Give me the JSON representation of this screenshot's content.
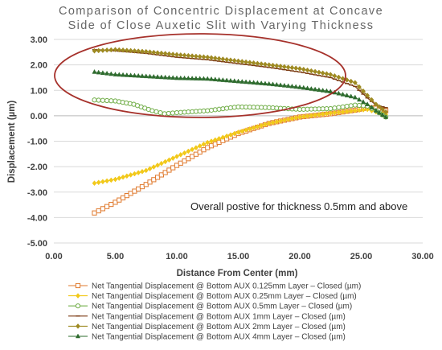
{
  "chart_data": {
    "type": "line",
    "title_line1": "Comparison of Concentric Displacement at Concave",
    "title_line2": "Side of Close Auxetic Slit with Varying Thickness",
    "xlabel": "Distance From Center (mm)",
    "ylabel": "Displacement (µm)",
    "xlim": [
      0,
      30
    ],
    "ylim": [
      -5,
      3
    ],
    "xticks": [
      "0.00",
      "5.00",
      "10.00",
      "15.00",
      "20.00",
      "25.00",
      "30.00"
    ],
    "yticks": [
      "3.00",
      "2.00",
      "1.00",
      "0.00",
      "-1.00",
      "-2.00",
      "-3.00",
      "-4.00",
      "-5.00"
    ],
    "grid": "horizontal",
    "legend_position": "bottom",
    "annotation": "Overall postive for thickness 0.5mm and above",
    "highlight": {
      "shape": "ellipse",
      "color": "#a6312b"
    },
    "series": [
      {
        "name": "Net Tangential Displacement @ Bottom AUX 0.125mm Layer – Closed (µm)",
        "color": "#e07a2e",
        "marker": "square-open",
        "points": [
          [
            3.3,
            -3.82
          ],
          [
            5,
            -3.4
          ],
          [
            7.5,
            -2.7
          ],
          [
            10,
            -1.95
          ],
          [
            12.5,
            -1.25
          ],
          [
            15,
            -0.7
          ],
          [
            17.5,
            -0.3
          ],
          [
            20,
            -0.05
          ],
          [
            22.5,
            0.08
          ],
          [
            24.5,
            0.22
          ],
          [
            25.5,
            0.32
          ],
          [
            26.2,
            0.3
          ],
          [
            27,
            0.2
          ]
        ]
      },
      {
        "name": "Net Tangential Displacement @ Bottom AUX 0.25mm Layer – Closed (µm)",
        "color": "#f2c91a",
        "marker": "diamond",
        "points": [
          [
            3.3,
            -2.65
          ],
          [
            5,
            -2.5
          ],
          [
            7.5,
            -2.15
          ],
          [
            10,
            -1.6
          ],
          [
            12.5,
            -1.05
          ],
          [
            15,
            -0.65
          ],
          [
            17.5,
            -0.3
          ],
          [
            20,
            -0.05
          ],
          [
            22.5,
            0.1
          ],
          [
            24.5,
            0.2
          ],
          [
            25.5,
            0.25
          ],
          [
            26.2,
            0.15
          ],
          [
            27,
            0.05
          ]
        ]
      },
      {
        "name": "Net Tangential Displacement @ Bottom AUX 0.5mm Layer – Closed (µm)",
        "color": "#70ad47",
        "marker": "circle-open",
        "points": [
          [
            3.3,
            0.62
          ],
          [
            5,
            0.58
          ],
          [
            6.5,
            0.45
          ],
          [
            8,
            0.2
          ],
          [
            9,
            0.08
          ],
          [
            10,
            0.12
          ],
          [
            12.5,
            0.2
          ],
          [
            15,
            0.35
          ],
          [
            17.5,
            0.32
          ],
          [
            20,
            0.25
          ],
          [
            22.5,
            0.28
          ],
          [
            24.5,
            0.42
          ],
          [
            25.5,
            0.38
          ],
          [
            26.2,
            0.2
          ],
          [
            27,
            -0.05
          ]
        ]
      },
      {
        "name": "Net Tangential Displacement @ Bottom AUX 1mm Layer – Closed (µm)",
        "color": "#7b3a12",
        "marker": "dash",
        "points": [
          [
            3.3,
            2.6
          ],
          [
            5,
            2.55
          ],
          [
            7.5,
            2.45
          ],
          [
            10,
            2.3
          ],
          [
            12.5,
            2.2
          ],
          [
            15,
            2.05
          ],
          [
            17.5,
            1.9
          ],
          [
            20,
            1.72
          ],
          [
            22.5,
            1.5
          ],
          [
            24.5,
            1.15
          ],
          [
            25.5,
            0.7
          ],
          [
            26.2,
            0.42
          ],
          [
            27,
            0.32
          ]
        ]
      },
      {
        "name": "Net Tangential Displacement @ Bottom AUX 2mm Layer – Closed (µm)",
        "color": "#9e8a22",
        "marker": "diamond",
        "points": [
          [
            3.3,
            2.55
          ],
          [
            5,
            2.6
          ],
          [
            7.5,
            2.52
          ],
          [
            10,
            2.4
          ],
          [
            12.5,
            2.3
          ],
          [
            15,
            2.15
          ],
          [
            17.5,
            2
          ],
          [
            20,
            1.85
          ],
          [
            22.5,
            1.62
          ],
          [
            24.5,
            1.3
          ],
          [
            25.5,
            0.8
          ],
          [
            26.2,
            0.45
          ],
          [
            27,
            0.15
          ]
        ]
      },
      {
        "name": "Net Tangential Displacement @ Bottom AUX 4mm Layer – Closed (µm)",
        "color": "#2e6b2e",
        "marker": "triangle",
        "points": [
          [
            3.3,
            1.72
          ],
          [
            5,
            1.62
          ],
          [
            7.5,
            1.55
          ],
          [
            10,
            1.48
          ],
          [
            12.5,
            1.45
          ],
          [
            15,
            1.35
          ],
          [
            17.5,
            1.25
          ],
          [
            20,
            1.12
          ],
          [
            22.5,
            0.95
          ],
          [
            24.5,
            0.72
          ],
          [
            25.5,
            0.45
          ],
          [
            26.2,
            0.2
          ],
          [
            27,
            -0.05
          ]
        ]
      }
    ]
  }
}
